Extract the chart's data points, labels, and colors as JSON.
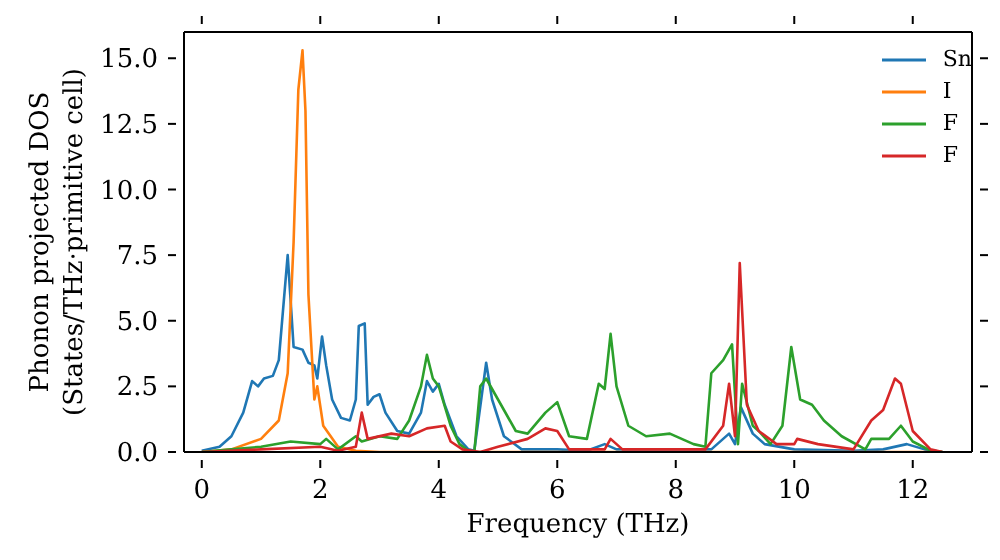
{
  "chart_data": {
    "type": "line",
    "xlabel": "Frequency (THz)",
    "ylabel": "Phonon projected DOS\n(States/THz·primitive cell)",
    "xlim": [
      -0.3,
      13
    ],
    "ylim": [
      0,
      16
    ],
    "xticks": [
      0,
      2,
      4,
      6,
      8,
      10,
      12
    ],
    "yticks": [
      {
        "value": 0,
        "label": "0.0"
      },
      {
        "value": 2.5,
        "label": "2.5"
      },
      {
        "value": 5,
        "label": "5.0"
      },
      {
        "value": 7.5,
        "label": "7.5"
      },
      {
        "value": 10,
        "label": "10.0"
      },
      {
        "value": 12.5,
        "label": "12.5"
      },
      {
        "value": 15,
        "label": "15.0"
      }
    ],
    "legend": "top right",
    "marker": "none",
    "line_style": "solid",
    "series": [
      {
        "name": "Sn",
        "color": "#1f77b4",
        "x": [
          0,
          0.3,
          0.5,
          0.7,
          0.85,
          0.95,
          1.05,
          1.2,
          1.3,
          1.45,
          1.55,
          1.7,
          1.8,
          1.9,
          1.95,
          2.03,
          2.1,
          2.2,
          2.35,
          2.5,
          2.6,
          2.65,
          2.75,
          2.8,
          2.9,
          3.0,
          3.1,
          3.3,
          3.5,
          3.7,
          3.8,
          3.9,
          4.0,
          4.1,
          4.3,
          4.5,
          4.6,
          4.8,
          4.9,
          5.1,
          5.4,
          6.0,
          6.5,
          6.8,
          7.0,
          8.6,
          8.9,
          9.0,
          9.1,
          9.3,
          9.5,
          10,
          11,
          11.5,
          11.9,
          12.2,
          12.5
        ],
        "values": [
          0.05,
          0.2,
          0.6,
          1.5,
          2.7,
          2.5,
          2.8,
          2.9,
          3.5,
          7.5,
          4.0,
          3.9,
          3.4,
          3.3,
          2.8,
          4.4,
          3.3,
          2.0,
          1.3,
          1.2,
          2.0,
          4.8,
          4.9,
          1.8,
          2.1,
          2.2,
          1.5,
          0.8,
          0.7,
          1.5,
          2.7,
          2.3,
          2.6,
          1.8,
          0.6,
          0.1,
          0.05,
          3.4,
          2.0,
          0.6,
          0.1,
          0.1,
          0.05,
          0.3,
          0.1,
          0.1,
          0.7,
          0.3,
          1.7,
          0.7,
          0.3,
          0.1,
          0.05,
          0.1,
          0.3,
          0.1,
          0
        ]
      },
      {
        "name": "I",
        "color": "#ff7f0e",
        "x": [
          0,
          0.5,
          1.0,
          1.3,
          1.45,
          1.55,
          1.63,
          1.7,
          1.75,
          1.8,
          1.9,
          1.95,
          2.05,
          2.3,
          2.6,
          3,
          6,
          9,
          12.5
        ],
        "values": [
          0,
          0.1,
          0.5,
          1.2,
          3,
          8,
          13.8,
          15.3,
          13,
          6,
          2.0,
          2.5,
          1.0,
          0.2,
          0.05,
          0,
          0,
          0,
          0
        ]
      },
      {
        "name": "F",
        "color": "#2ca02c",
        "x": [
          0,
          0.5,
          1.0,
          1.5,
          2.0,
          2.1,
          2.3,
          2.6,
          2.7,
          3.0,
          3.3,
          3.5,
          3.7,
          3.8,
          3.9,
          4.0,
          4.2,
          4.35,
          4.5,
          4.6,
          4.7,
          4.8,
          4.95,
          5.0,
          5.3,
          5.5,
          5.8,
          6.0,
          6.2,
          6.5,
          6.7,
          6.8,
          6.9,
          7.0,
          7.2,
          7.5,
          7.9,
          8.3,
          8.5,
          8.6,
          8.8,
          8.95,
          9.05,
          9.12,
          9.3,
          9.4,
          9.6,
          9.8,
          9.95,
          10.1,
          10.3,
          10.5,
          10.8,
          11.2,
          11.3,
          11.6,
          11.8,
          12.0,
          12.3,
          12.5
        ],
        "values": [
          0,
          0.1,
          0.2,
          0.4,
          0.3,
          0.5,
          0.1,
          0.6,
          0.4,
          0.6,
          0.5,
          1.2,
          2.5,
          3.7,
          2.8,
          2.5,
          1.0,
          0.3,
          0.05,
          0,
          2.5,
          2.8,
          2.2,
          2.0,
          0.8,
          0.7,
          1.5,
          1.9,
          0.6,
          0.5,
          2.6,
          2.4,
          4.5,
          2.5,
          1.0,
          0.6,
          0.7,
          0.3,
          0.2,
          3.0,
          3.5,
          4.1,
          0.3,
          2.6,
          1.0,
          0.8,
          0.3,
          1.0,
          4.0,
          2.0,
          1.8,
          1.2,
          0.6,
          0.1,
          0.5,
          0.5,
          1.0,
          0.4,
          0.05,
          0
        ]
      },
      {
        "name": "F",
        "color": "#d62728",
        "x": [
          0,
          1,
          2,
          2.3,
          2.6,
          2.7,
          2.8,
          3.2,
          3.5,
          3.8,
          4.1,
          4.2,
          4.4,
          4.7,
          5,
          5.5,
          5.8,
          6.0,
          6.2,
          6.8,
          6.9,
          7.1,
          8.5,
          8.8,
          8.9,
          9.0,
          9.08,
          9.2,
          9.4,
          9.7,
          10.0,
          10.05,
          10.4,
          11.0,
          11.3,
          11.5,
          11.7,
          11.8,
          12.0,
          12.3,
          12.5
        ],
        "values": [
          0,
          0.1,
          0.2,
          0.05,
          0.2,
          1.5,
          0.5,
          0.7,
          0.6,
          0.9,
          1.0,
          0.4,
          0.1,
          0,
          0.2,
          0.5,
          0.9,
          0.8,
          0.1,
          0.1,
          0.5,
          0.1,
          0.1,
          1.0,
          2.6,
          0.6,
          7.2,
          1.8,
          0.8,
          0.3,
          0.3,
          0.5,
          0.3,
          0.1,
          1.2,
          1.6,
          2.8,
          2.6,
          0.8,
          0.1,
          0
        ]
      }
    ]
  }
}
